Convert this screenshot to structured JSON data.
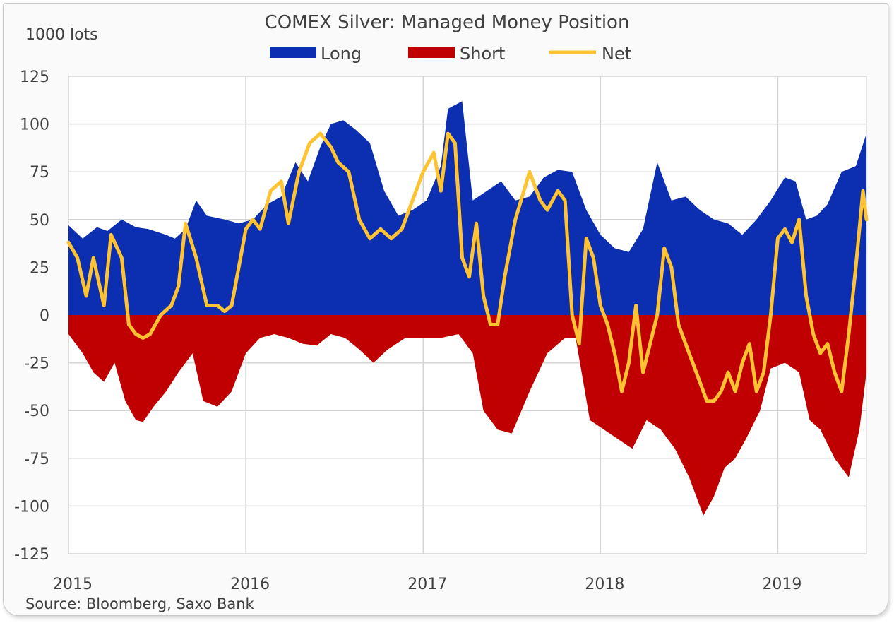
{
  "chart_data": {
    "type": "area",
    "title": "COMEX Silver: Managed Money Position",
    "ylabel": "1000 lots",
    "source": "Source: Bloomberg, Saxo Bank",
    "ylim": [
      -125,
      125
    ],
    "yticks": [
      125,
      100,
      75,
      50,
      25,
      0,
      -25,
      -50,
      -75,
      -100,
      -125
    ],
    "xlim": [
      2015.0,
      2019.5
    ],
    "xticks": [
      2015,
      2016,
      2017,
      2018,
      2019
    ],
    "grid": true,
    "legend_position": "top",
    "series": [
      {
        "name": "Long",
        "color": "#0b2fb0",
        "x": [
          2015.0,
          2015.08,
          2015.16,
          2015.22,
          2015.3,
          2015.38,
          2015.45,
          2015.55,
          2015.6,
          2015.66,
          2015.72,
          2015.78,
          2015.88,
          2015.96,
          2016.04,
          2016.12,
          2016.2,
          2016.28,
          2016.35,
          2016.42,
          2016.48,
          2016.55,
          2016.62,
          2016.7,
          2016.78,
          2016.86,
          2016.94,
          2017.02,
          2017.1,
          2017.14,
          2017.22,
          2017.28,
          2017.36,
          2017.44,
          2017.52,
          2017.6,
          2017.68,
          2017.76,
          2017.84,
          2017.92,
          2018.0,
          2018.08,
          2018.16,
          2018.24,
          2018.32,
          2018.4,
          2018.48,
          2018.56,
          2018.64,
          2018.72,
          2018.8,
          2018.88,
          2018.96,
          2019.04,
          2019.1,
          2019.16,
          2019.22,
          2019.28,
          2019.36,
          2019.44,
          2019.5
        ],
        "values": [
          47,
          40,
          46,
          44,
          50,
          46,
          45,
          42,
          40,
          45,
          60,
          52,
          50,
          48,
          50,
          58,
          62,
          80,
          70,
          88,
          100,
          102,
          97,
          90,
          65,
          52,
          55,
          60,
          78,
          108,
          112,
          60,
          65,
          70,
          60,
          62,
          72,
          76,
          75,
          55,
          42,
          35,
          33,
          45,
          80,
          60,
          62,
          55,
          50,
          48,
          42,
          50,
          60,
          72,
          70,
          50,
          52,
          58,
          75,
          78,
          95
        ]
      },
      {
        "name": "Short",
        "color": "#c00000",
        "x": [
          2015.0,
          2015.08,
          2015.14,
          2015.2,
          2015.26,
          2015.32,
          2015.38,
          2015.42,
          2015.48,
          2015.55,
          2015.62,
          2015.7,
          2015.76,
          2015.84,
          2015.92,
          2016.0,
          2016.08,
          2016.16,
          2016.24,
          2016.32,
          2016.4,
          2016.48,
          2016.56,
          2016.64,
          2016.72,
          2016.8,
          2016.9,
          2017.0,
          2017.1,
          2017.2,
          2017.28,
          2017.34,
          2017.42,
          2017.5,
          2017.6,
          2017.7,
          2017.8,
          2017.86,
          2017.94,
          2018.02,
          2018.1,
          2018.18,
          2018.26,
          2018.34,
          2018.42,
          2018.5,
          2018.58,
          2018.64,
          2018.7,
          2018.76,
          2018.82,
          2018.9,
          2018.96,
          2019.04,
          2019.12,
          2019.18,
          2019.24,
          2019.32,
          2019.4,
          2019.46,
          2019.5
        ],
        "values": [
          -10,
          -20,
          -30,
          -35,
          -25,
          -45,
          -55,
          -56,
          -48,
          -40,
          -30,
          -20,
          -45,
          -48,
          -40,
          -20,
          -12,
          -10,
          -12,
          -15,
          -16,
          -10,
          -12,
          -18,
          -25,
          -18,
          -12,
          -12,
          -12,
          -10,
          -20,
          -50,
          -60,
          -62,
          -40,
          -20,
          -12,
          -12,
          -55,
          -60,
          -65,
          -70,
          -55,
          -60,
          -70,
          -85,
          -105,
          -95,
          -80,
          -75,
          -65,
          -50,
          -28,
          -25,
          -30,
          -55,
          -60,
          -75,
          -85,
          -60,
          -30
        ]
      },
      {
        "name": "Net",
        "color": "#ffc230",
        "x": [
          2015.0,
          2015.05,
          2015.1,
          2015.14,
          2015.2,
          2015.24,
          2015.3,
          2015.34,
          2015.38,
          2015.42,
          2015.46,
          2015.52,
          2015.58,
          2015.62,
          2015.66,
          2015.72,
          2015.78,
          2015.84,
          2015.88,
          2015.92,
          2015.96,
          2016.0,
          2016.04,
          2016.08,
          2016.14,
          2016.2,
          2016.24,
          2016.3,
          2016.36,
          2016.42,
          2016.48,
          2016.52,
          2016.58,
          2016.64,
          2016.7,
          2016.76,
          2016.82,
          2016.88,
          2016.94,
          2017.0,
          2017.06,
          2017.1,
          2017.14,
          2017.18,
          2017.22,
          2017.26,
          2017.3,
          2017.34,
          2017.38,
          2017.42,
          2017.46,
          2017.52,
          2017.6,
          2017.66,
          2017.7,
          2017.76,
          2017.8,
          2017.84,
          2017.88,
          2017.92,
          2017.96,
          2018.0,
          2018.04,
          2018.08,
          2018.12,
          2018.16,
          2018.2,
          2018.24,
          2018.28,
          2018.32,
          2018.36,
          2018.4,
          2018.44,
          2018.5,
          2018.56,
          2018.6,
          2018.64,
          2018.68,
          2018.72,
          2018.76,
          2018.8,
          2018.84,
          2018.88,
          2018.92,
          2018.96,
          2019.0,
          2019.04,
          2019.08,
          2019.12,
          2019.16,
          2019.2,
          2019.24,
          2019.28,
          2019.32,
          2019.36,
          2019.4,
          2019.44,
          2019.48,
          2019.5
        ],
        "values": [
          38,
          30,
          10,
          30,
          5,
          42,
          30,
          -5,
          -10,
          -12,
          -10,
          0,
          5,
          15,
          48,
          30,
          5,
          5,
          2,
          5,
          25,
          45,
          50,
          45,
          65,
          70,
          48,
          75,
          90,
          95,
          88,
          80,
          75,
          50,
          40,
          45,
          40,
          45,
          60,
          75,
          85,
          65,
          95,
          90,
          30,
          20,
          48,
          10,
          -5,
          -5,
          20,
          50,
          75,
          60,
          55,
          65,
          60,
          0,
          -15,
          40,
          30,
          5,
          -5,
          -20,
          -40,
          -25,
          5,
          -30,
          -15,
          0,
          35,
          25,
          -5,
          -20,
          -35,
          -45,
          -45,
          -40,
          -30,
          -40,
          -25,
          -15,
          -40,
          -30,
          0,
          40,
          45,
          38,
          50,
          10,
          -10,
          -20,
          -15,
          -30,
          -40,
          -10,
          25,
          65,
          50
        ]
      }
    ]
  }
}
